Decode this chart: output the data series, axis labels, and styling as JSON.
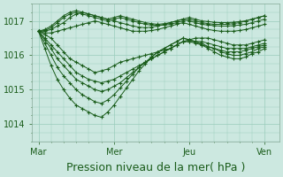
{
  "background_color": "#cce8e0",
  "plot_bg_color": "#cce8e0",
  "grid_color": "#99ccbb",
  "line_color": "#1a5c1a",
  "marker_color": "#1a5c1a",
  "xlabel": "Pression niveau de la mer( hPa )",
  "xtick_labels": [
    "Mar",
    "Mer",
    "Jeu",
    "Ven"
  ],
  "xtick_positions": [
    0,
    36,
    72,
    108
  ],
  "ylim": [
    1013.6,
    1017.5
  ],
  "yticks": [
    1014,
    1015,
    1016,
    1017
  ],
  "xlim": [
    -3,
    115
  ],
  "xlabel_fontsize": 9,
  "ytick_fontsize": 7,
  "xtick_fontsize": 7,
  "series": [
    [
      1016.7,
      1016.6,
      1016.5,
      1016.3,
      1016.1,
      1015.9,
      1015.8,
      1015.7,
      1015.6,
      1015.5,
      1015.55,
      1015.6,
      1015.7,
      1015.8,
      1015.85,
      1015.9,
      1015.95,
      1016.0,
      1016.05,
      1016.1,
      1016.15,
      1016.2,
      1016.3,
      1016.4,
      1016.45,
      1016.5,
      1016.5,
      1016.5,
      1016.45,
      1016.4,
      1016.35,
      1016.3,
      1016.3,
      1016.3,
      1016.35,
      1016.4,
      1016.45
    ],
    [
      1016.7,
      1016.5,
      1016.3,
      1016.1,
      1015.9,
      1015.7,
      1015.5,
      1015.4,
      1015.3,
      1015.25,
      1015.2,
      1015.25,
      1015.3,
      1015.4,
      1015.5,
      1015.6,
      1015.7,
      1015.8,
      1015.9,
      1016.0,
      1016.1,
      1016.2,
      1016.3,
      1016.4,
      1016.4,
      1016.4,
      1016.4,
      1016.35,
      1016.3,
      1016.25,
      1016.2,
      1016.2,
      1016.2,
      1016.2,
      1016.25,
      1016.3,
      1016.35
    ],
    [
      1016.7,
      1016.45,
      1016.2,
      1015.9,
      1015.7,
      1015.5,
      1015.3,
      1015.2,
      1015.1,
      1015.0,
      1014.95,
      1015.0,
      1015.1,
      1015.2,
      1015.35,
      1015.5,
      1015.65,
      1015.8,
      1015.9,
      1016.0,
      1016.1,
      1016.2,
      1016.3,
      1016.4,
      1016.4,
      1016.35,
      1016.3,
      1016.25,
      1016.2,
      1016.15,
      1016.1,
      1016.1,
      1016.1,
      1016.15,
      1016.2,
      1016.25,
      1016.3
    ],
    [
      1016.7,
      1016.35,
      1016.0,
      1015.65,
      1015.4,
      1015.2,
      1015.0,
      1014.85,
      1014.75,
      1014.65,
      1014.6,
      1014.7,
      1014.85,
      1015.05,
      1015.25,
      1015.45,
      1015.65,
      1015.8,
      1015.95,
      1016.1,
      1016.2,
      1016.3,
      1016.4,
      1016.5,
      1016.45,
      1016.4,
      1016.35,
      1016.25,
      1016.2,
      1016.1,
      1016.05,
      1016.0,
      1016.0,
      1016.05,
      1016.1,
      1016.2,
      1016.25
    ],
    [
      1016.7,
      1016.2,
      1015.7,
      1015.3,
      1015.0,
      1014.75,
      1014.55,
      1014.45,
      1014.35,
      1014.25,
      1014.2,
      1014.35,
      1014.55,
      1014.8,
      1015.05,
      1015.3,
      1015.55,
      1015.75,
      1015.95,
      1016.1,
      1016.2,
      1016.3,
      1016.4,
      1016.5,
      1016.45,
      1016.4,
      1016.3,
      1016.2,
      1016.1,
      1016.0,
      1015.95,
      1015.9,
      1015.9,
      1015.95,
      1016.05,
      1016.1,
      1016.2
    ],
    [
      1016.7,
      1016.65,
      1016.65,
      1016.7,
      1016.75,
      1016.8,
      1016.85,
      1016.9,
      1016.95,
      1017.0,
      1016.95,
      1016.9,
      1016.85,
      1016.8,
      1016.75,
      1016.7,
      1016.7,
      1016.7,
      1016.72,
      1016.75,
      1016.8,
      1016.85,
      1016.9,
      1016.95,
      1016.9,
      1016.85,
      1016.8,
      1016.75,
      1016.72,
      1016.7,
      1016.7,
      1016.7,
      1016.72,
      1016.75,
      1016.8,
      1016.85,
      1016.9
    ],
    [
      1016.7,
      1016.7,
      1016.75,
      1016.85,
      1016.95,
      1017.1,
      1017.2,
      1017.25,
      1017.2,
      1017.15,
      1017.1,
      1017.05,
      1017.0,
      1016.95,
      1016.9,
      1016.85,
      1016.82,
      1016.8,
      1016.82,
      1016.85,
      1016.9,
      1016.95,
      1017.0,
      1017.05,
      1017.0,
      1016.95,
      1016.9,
      1016.88,
      1016.86,
      1016.85,
      1016.85,
      1016.86,
      1016.88,
      1016.9,
      1016.95,
      1017.0,
      1017.05
    ],
    [
      1016.7,
      1016.72,
      1016.8,
      1016.95,
      1017.1,
      1017.2,
      1017.25,
      1017.2,
      1017.15,
      1017.1,
      1017.05,
      1017.0,
      1017.05,
      1017.1,
      1017.05,
      1017.0,
      1016.95,
      1016.9,
      1016.88,
      1016.87,
      1016.88,
      1016.9,
      1016.95,
      1017.0,
      1017.05,
      1017.0,
      1016.95,
      1016.92,
      1016.9,
      1016.9,
      1016.9,
      1016.92,
      1016.95,
      1017.0,
      1017.05,
      1017.1,
      1017.15
    ],
    [
      1016.7,
      1016.75,
      1016.85,
      1017.0,
      1017.15,
      1017.25,
      1017.3,
      1017.25,
      1017.2,
      1017.15,
      1017.1,
      1017.05,
      1017.1,
      1017.15,
      1017.1,
      1017.05,
      1017.0,
      1016.95,
      1016.92,
      1016.9,
      1016.92,
      1016.95,
      1017.0,
      1017.05,
      1017.1,
      1017.05,
      1017.0,
      1016.98,
      1016.96,
      1016.95,
      1016.95,
      1016.96,
      1016.98,
      1017.0,
      1017.05,
      1017.1,
      1017.15
    ]
  ]
}
